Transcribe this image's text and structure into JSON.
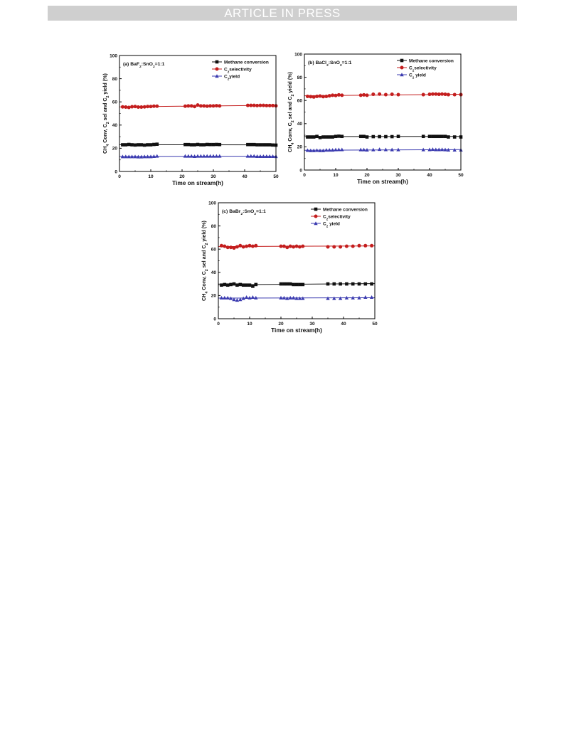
{
  "header": {
    "banner": "ARTICLE IN PRESS"
  },
  "chart_data": [
    {
      "type": "line",
      "annotation": [
        "(a) BaF",
        "2",
        ":SnO",
        "2",
        "=1:1"
      ],
      "xlabel": "Time on stream(h)",
      "ylabel": [
        "CH",
        "4",
        " Conv, C",
        "2",
        " sel and C",
        "2",
        " yield (%)"
      ],
      "xlim": [
        0,
        50
      ],
      "ylim": [
        0,
        100
      ],
      "xticks": [
        "0",
        "10",
        "20",
        "30",
        "40",
        "50"
      ],
      "yticks": [
        "0",
        "20",
        "40",
        "60",
        "80",
        "100"
      ],
      "legend_position": "top-right",
      "series": [
        {
          "name": [
            "Methane conversion"
          ],
          "color": "#111111",
          "marker": "square",
          "x": [
            1,
            2,
            3,
            4,
            5,
            6,
            7,
            8,
            9,
            10,
            11,
            12,
            21,
            22,
            23,
            24,
            25,
            26,
            27,
            28,
            29,
            30,
            31,
            32,
            41,
            42,
            43,
            44,
            45,
            46,
            47,
            48,
            49,
            50
          ],
          "y": [
            23.0,
            23.0,
            23.3,
            23.0,
            22.8,
            23.0,
            23.0,
            22.7,
            23.0,
            23.0,
            23.3,
            23.5,
            23.2,
            23.2,
            23.0,
            23.0,
            23.3,
            23.0,
            23.0,
            23.3,
            23.2,
            23.2,
            23.3,
            23.2,
            23.2,
            23.2,
            23.2,
            23.0,
            23.0,
            23.0,
            23.0,
            23.0,
            22.8,
            22.7
          ],
          "fit": [
            23.1,
            22.9
          ]
        },
        {
          "name": [
            "C",
            "2",
            "selectivity"
          ],
          "color": "#c41e1e",
          "marker": "circle",
          "x": [
            1,
            2,
            3,
            4,
            5,
            6,
            7,
            8,
            9,
            10,
            11,
            12,
            21,
            22,
            23,
            24,
            25,
            26,
            27,
            28,
            29,
            30,
            31,
            32,
            41,
            42,
            43,
            44,
            45,
            46,
            47,
            48,
            49,
            50
          ],
          "y": [
            55.7,
            55.5,
            55.2,
            55.8,
            56.0,
            55.5,
            55.5,
            55.7,
            56.0,
            56.0,
            56.3,
            56.3,
            56.3,
            56.5,
            56.5,
            56.0,
            57.3,
            56.5,
            56.5,
            56.3,
            56.5,
            56.5,
            56.7,
            56.5,
            57.0,
            57.0,
            57.0,
            56.8,
            57.0,
            57.0,
            56.8,
            56.8,
            56.8,
            56.6
          ],
          "fit": [
            55.7,
            57.1
          ]
        },
        {
          "name": [
            "C",
            "2",
            "yield"
          ],
          "color": "#3b3bb0",
          "marker": "triangle",
          "x": [
            1,
            2,
            3,
            4,
            5,
            6,
            7,
            8,
            9,
            10,
            11,
            12,
            21,
            22,
            23,
            24,
            25,
            26,
            27,
            28,
            29,
            30,
            31,
            32,
            41,
            42,
            43,
            44,
            45,
            46,
            47,
            48,
            49,
            50
          ],
          "y": [
            12.8,
            12.8,
            12.8,
            12.8,
            12.8,
            12.6,
            12.6,
            12.8,
            12.8,
            12.8,
            13.0,
            13.2,
            13.2,
            13.2,
            13.2,
            13.0,
            13.2,
            13.2,
            13.2,
            13.2,
            13.2,
            13.2,
            13.2,
            13.2,
            13.2,
            13.2,
            13.2,
            13.0,
            13.0,
            13.0,
            13.0,
            13.0,
            13.0,
            12.9
          ],
          "fit": [
            12.9,
            13.2
          ]
        }
      ]
    },
    {
      "type": "line",
      "annotation": [
        "(b) BaCl",
        "2",
        ":SnO",
        "2",
        "=1:1"
      ],
      "xlabel": "Time on stream(h)",
      "ylabel": [
        "CH",
        "4",
        " Conv, C",
        "2",
        " sel and C",
        "2",
        " yield (%)"
      ],
      "xlim": [
        0,
        50
      ],
      "ylim": [
        0,
        100
      ],
      "xticks": [
        "0",
        "10",
        "20",
        "30",
        "40",
        "50"
      ],
      "yticks": [
        "0",
        "20",
        "40",
        "60",
        "80",
        "100"
      ],
      "legend_position": "top-right",
      "series": [
        {
          "name": [
            "Methane conversion"
          ],
          "color": "#111111",
          "marker": "square",
          "x": [
            1,
            2,
            3,
            4,
            5,
            6,
            7,
            8,
            9,
            10,
            11,
            12,
            18,
            19,
            20,
            22,
            24,
            26,
            28,
            30,
            38,
            40,
            41,
            42,
            43,
            44,
            45,
            46,
            48,
            50
          ],
          "y": [
            28.5,
            28.5,
            28.5,
            29.0,
            28.0,
            28.5,
            28.5,
            28.5,
            28.5,
            29.0,
            29.2,
            29.0,
            29.0,
            29.0,
            28.5,
            28.8,
            28.8,
            28.8,
            28.8,
            29.0,
            29.0,
            29.0,
            29.0,
            29.0,
            29.0,
            29.0,
            29.0,
            28.5,
            28.5,
            28.5
          ],
          "fit": [
            28.8,
            29.0
          ]
        },
        {
          "name": [
            "C",
            "2",
            "selectivity"
          ],
          "color": "#c41e1e",
          "marker": "circle",
          "x": [
            1,
            2,
            3,
            4,
            5,
            6,
            7,
            8,
            9,
            10,
            11,
            12,
            18,
            19,
            20,
            22,
            24,
            26,
            28,
            30,
            38,
            40,
            41,
            42,
            43,
            44,
            45,
            46,
            48,
            50
          ],
          "y": [
            63.5,
            63.3,
            63.0,
            63.5,
            63.8,
            63.3,
            63.5,
            64.0,
            64.5,
            64.3,
            64.8,
            64.5,
            64.5,
            64.8,
            64.5,
            65.3,
            65.5,
            65.0,
            65.3,
            65.0,
            65.0,
            65.3,
            65.5,
            65.5,
            65.3,
            65.5,
            65.3,
            65.0,
            65.0,
            65.0
          ],
          "fit": [
            64.0,
            65.3
          ]
        },
        {
          "name": [
            "C",
            "2",
            " yield"
          ],
          "color": "#3b3bb0",
          "marker": "triangle",
          "x": [
            1,
            2,
            3,
            4,
            5,
            6,
            7,
            8,
            9,
            10,
            11,
            12,
            18,
            19,
            20,
            22,
            24,
            26,
            28,
            30,
            38,
            40,
            41,
            42,
            43,
            44,
            45,
            46,
            48,
            50
          ],
          "y": [
            17.0,
            16.8,
            16.8,
            17.0,
            16.8,
            16.8,
            17.2,
            17.2,
            17.2,
            17.5,
            17.6,
            17.6,
            17.5,
            17.5,
            17.3,
            17.5,
            17.8,
            17.6,
            17.5,
            17.5,
            17.5,
            17.6,
            17.8,
            17.6,
            17.6,
            17.7,
            17.5,
            17.3,
            17.3,
            17.3
          ],
          "fit": [
            17.0,
            17.6
          ]
        }
      ]
    },
    {
      "type": "line",
      "annotation": [
        "(c) BaBr",
        "2",
        ":SnO",
        "2",
        "=1:1"
      ],
      "xlabel": "Time on stream(h)",
      "ylabel": [
        "CH",
        "4",
        " Conv, C",
        "2",
        " sel and C",
        "2",
        " yield (%)"
      ],
      "xlim": [
        0,
        50
      ],
      "ylim": [
        0,
        100
      ],
      "xticks": [
        "0",
        "10",
        "20",
        "30",
        "40",
        "50"
      ],
      "yticks": [
        "0",
        "20",
        "40",
        "60",
        "80",
        "100"
      ],
      "legend_position": "top-right",
      "series": [
        {
          "name": [
            "Methane conversion"
          ],
          "color": "#111111",
          "marker": "square",
          "x": [
            1,
            2,
            3,
            4,
            5,
            6,
            7,
            8,
            9,
            10,
            11,
            12,
            20,
            21,
            22,
            23,
            24,
            25,
            26,
            27,
            35,
            37,
            39,
            41,
            43,
            45,
            47,
            49
          ],
          "y": [
            29.0,
            29.5,
            29.0,
            29.5,
            30.0,
            29.0,
            29.5,
            29.0,
            29.0,
            29.0,
            28.0,
            29.5,
            30.0,
            30.0,
            30.0,
            30.0,
            29.5,
            29.5,
            29.5,
            29.5,
            30.0,
            30.0,
            30.0,
            30.0,
            30.0,
            30.0,
            30.0,
            30.0
          ],
          "fit": [
            29.2,
            30.3
          ]
        },
        {
          "name": [
            "C",
            "2",
            "selectivity"
          ],
          "color": "#c41e1e",
          "marker": "circle",
          "x": [
            1,
            2,
            3,
            4,
            5,
            6,
            7,
            8,
            9,
            10,
            11,
            12,
            20,
            21,
            22,
            23,
            24,
            25,
            26,
            27,
            35,
            37,
            39,
            41,
            43,
            45,
            47,
            49
          ],
          "y": [
            63.0,
            62.5,
            61.5,
            61.5,
            61.0,
            62.0,
            63.0,
            62.0,
            62.5,
            63.0,
            62.5,
            63.0,
            62.5,
            62.5,
            61.5,
            62.5,
            62.0,
            62.5,
            62.0,
            62.5,
            62.0,
            62.0,
            62.0,
            62.5,
            62.5,
            63.0,
            63.0,
            63.0
          ],
          "fit": [
            62.2,
            62.8
          ]
        },
        {
          "name": [
            "C",
            "2",
            " yield"
          ],
          "color": "#3b3bb0",
          "marker": "triangle",
          "x": [
            1,
            2,
            3,
            4,
            5,
            6,
            7,
            8,
            9,
            10,
            11,
            12,
            20,
            21,
            22,
            23,
            24,
            25,
            26,
            27,
            35,
            37,
            39,
            41,
            43,
            45,
            47,
            49
          ],
          "y": [
            18.0,
            18.0,
            18.0,
            17.5,
            16.5,
            16.0,
            16.5,
            17.5,
            18.5,
            18.0,
            18.5,
            18.0,
            18.0,
            18.0,
            17.5,
            18.0,
            18.0,
            17.5,
            17.5,
            17.5,
            17.5,
            17.5,
            17.5,
            18.0,
            18.0,
            18.0,
            18.5,
            18.5
          ],
          "fit": [
            17.8,
            18.1
          ]
        }
      ]
    }
  ]
}
